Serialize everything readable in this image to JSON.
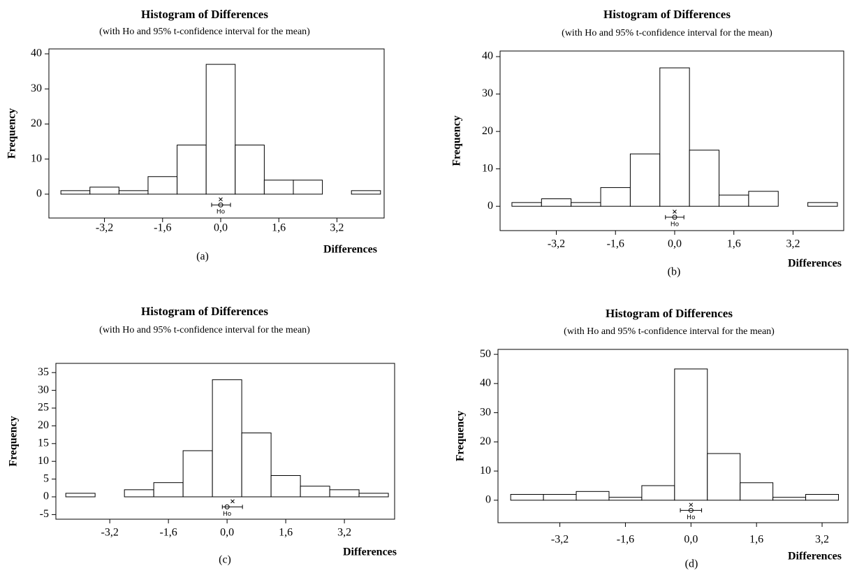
{
  "chart_data": [
    {
      "type": "histogram",
      "title": "Histogram of Differences",
      "subtitle": "(with Ho and 95% t-confidence interval for the mean)",
      "xlabel": "Differences",
      "ylabel": "Frequency",
      "caption": "(a)",
      "bins": [
        -4.4,
        -3.6,
        -2.8,
        -2.0,
        -1.2,
        -0.4,
        0.4,
        1.2,
        2.0,
        2.8,
        3.6,
        4.4
      ],
      "values": [
        1,
        2,
        1,
        5,
        14,
        37,
        14,
        4,
        4,
        0,
        1
      ],
      "xlim": [
        -4.73,
        4.5
      ],
      "ylim": [
        -6.8,
        41.4
      ],
      "xticks": [
        {
          "value": -3.2,
          "label": "-3,2"
        },
        {
          "value": -1.6,
          "label": "-1,6"
        },
        {
          "value": 0,
          "label": "0,0"
        },
        {
          "value": 1.6,
          "label": "1,6"
        },
        {
          "value": 3.2,
          "label": "3,2"
        }
      ],
      "yticks": [
        0,
        10,
        20,
        30,
        40
      ],
      "h0": 0,
      "h0_label": "Ho",
      "mean": 0.0,
      "ci": [
        -0.25,
        0.27
      ]
    },
    {
      "type": "histogram",
      "title": "Histogram of Differences",
      "subtitle": "(with Ho and 95% t-confidence interval for the mean)",
      "xlabel": "Differences",
      "ylabel": "Frequency",
      "caption": "(b)",
      "bins": [
        -4.4,
        -3.6,
        -2.8,
        -2.0,
        -1.2,
        -0.4,
        0.4,
        1.2,
        2.0,
        2.8,
        3.6,
        4.4
      ],
      "values": [
        1,
        2,
        1,
        5,
        14,
        37,
        15,
        3,
        4,
        0,
        1
      ],
      "xlim": [
        -4.72,
        4.57
      ],
      "ylim": [
        -6.5,
        41.5
      ],
      "xticks": [
        {
          "value": -3.2,
          "label": "-3,2"
        },
        {
          "value": -1.6,
          "label": "-1,6"
        },
        {
          "value": 0,
          "label": "0,0"
        },
        {
          "value": 1.6,
          "label": "1,6"
        },
        {
          "value": 3.2,
          "label": "3,2"
        }
      ],
      "yticks": [
        0,
        10,
        20,
        30,
        40
      ],
      "h0": 0,
      "h0_label": "Ho",
      "mean": 0.0,
      "ci": [
        -0.25,
        0.25
      ]
    },
    {
      "type": "histogram",
      "title": "Histogram of Differences",
      "subtitle": "(with Ho and 95% t-confidence interval for the mean)",
      "xlabel": "Differences",
      "ylabel": "Frequency",
      "caption": "(c)",
      "bins": [
        -4.4,
        -3.6,
        -2.8,
        -2.0,
        -1.2,
        -0.4,
        0.4,
        1.2,
        2.0,
        2.8,
        3.6,
        4.4
      ],
      "values": [
        1,
        0,
        2,
        4,
        13,
        33,
        18,
        6,
        3,
        2,
        1
      ],
      "xlim": [
        -4.67,
        4.57
      ],
      "ylim": [
        -6.3,
        37.6
      ],
      "xticks": [
        {
          "value": -3.2,
          "label": "-3,2"
        },
        {
          "value": -1.6,
          "label": "-1,6"
        },
        {
          "value": 0,
          "label": "0,0"
        },
        {
          "value": 1.6,
          "label": "1,6"
        },
        {
          "value": 3.2,
          "label": "3,2"
        }
      ],
      "yticks": [
        -5,
        0,
        5,
        10,
        15,
        20,
        25,
        30,
        35
      ],
      "h0": 0,
      "h0_label": "Ho",
      "mean": 0.15,
      "ci": [
        -0.13,
        0.42
      ]
    },
    {
      "type": "histogram",
      "title": "Histogram of Differences",
      "subtitle": "(with Ho and 95% t-confidence interval for the mean)",
      "xlabel": "Differences",
      "ylabel": "Frequency",
      "caption": "(d)",
      "bins": [
        -4.4,
        -3.6,
        -2.8,
        -2.0,
        -1.2,
        -0.4,
        0.4,
        1.2,
        2.0,
        2.8,
        3.6
      ],
      "values": [
        2,
        2,
        3,
        1,
        5,
        45,
        16,
        6,
        1,
        2
      ],
      "xlim": [
        -4.71,
        3.83
      ],
      "ylim": [
        -7.7,
        51.7
      ],
      "xticks": [
        {
          "value": -3.2,
          "label": "-3,2"
        },
        {
          "value": -1.6,
          "label": "-1,6"
        },
        {
          "value": 0,
          "label": "0,0"
        },
        {
          "value": 1.6,
          "label": "1,6"
        },
        {
          "value": 3.2,
          "label": "3,2"
        }
      ],
      "yticks": [
        0,
        10,
        20,
        30,
        40,
        50
      ],
      "h0": 0,
      "h0_label": "Ho",
      "mean": 0.0,
      "ci": [
        -0.26,
        0.26
      ]
    }
  ]
}
